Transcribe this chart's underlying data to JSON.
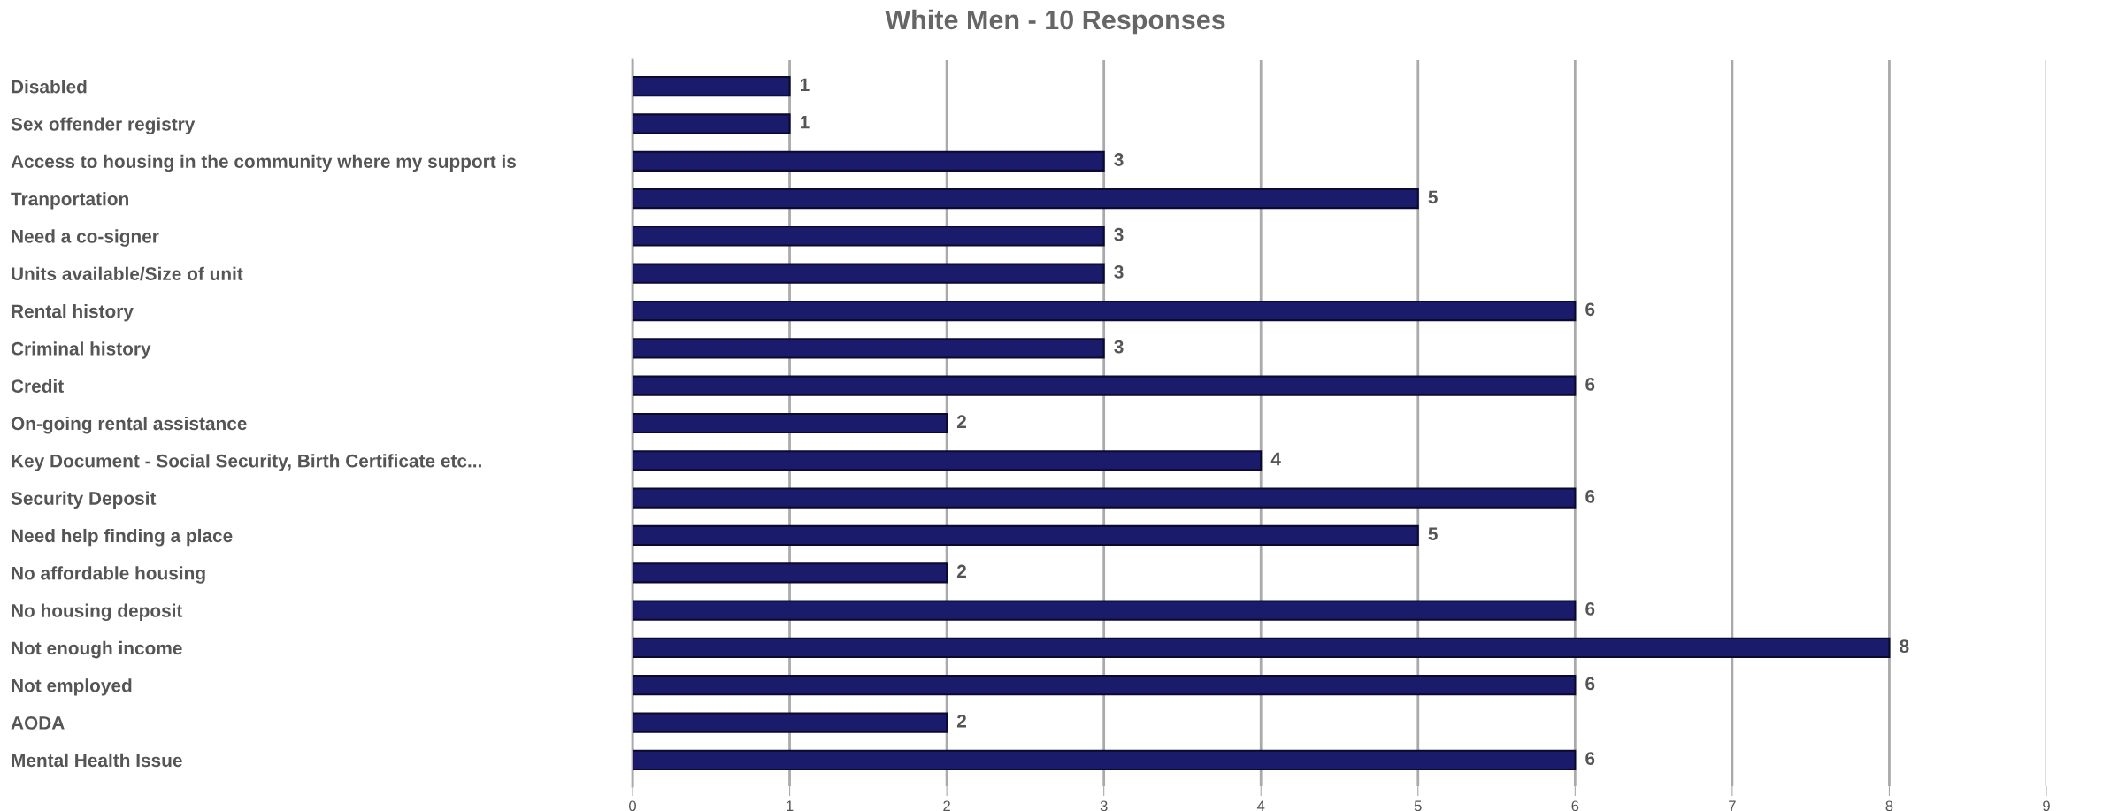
{
  "chart_data": {
    "type": "bar",
    "orientation": "horizontal",
    "title": "White Men - 10 Responses",
    "categories": [
      "Disabled",
      "Sex offender registry",
      "Access to housing in the community where my support is",
      "Tranportation",
      "Need a co-signer",
      "Units available/Size of unit",
      "Rental history",
      "Criminal history",
      "Credit",
      "On-going rental assistance",
      "Key Document - Social Security, Birth Certificate etc...",
      "Security Deposit",
      "Need help finding a place",
      "No affordable housing",
      "No housing deposit",
      "Not enough income",
      "Not employed",
      "AODA",
      "Mental Health Issue"
    ],
    "values": [
      1,
      1,
      3,
      5,
      3,
      3,
      6,
      3,
      6,
      2,
      4,
      6,
      5,
      2,
      6,
      8,
      6,
      2,
      6
    ],
    "color": "#1b1b6b",
    "xlim": [
      0,
      9
    ],
    "xticks": [
      0,
      1,
      2,
      3,
      4,
      5,
      6,
      7,
      8,
      9
    ],
    "grid": "x",
    "data_labels": true,
    "legend": false
  }
}
